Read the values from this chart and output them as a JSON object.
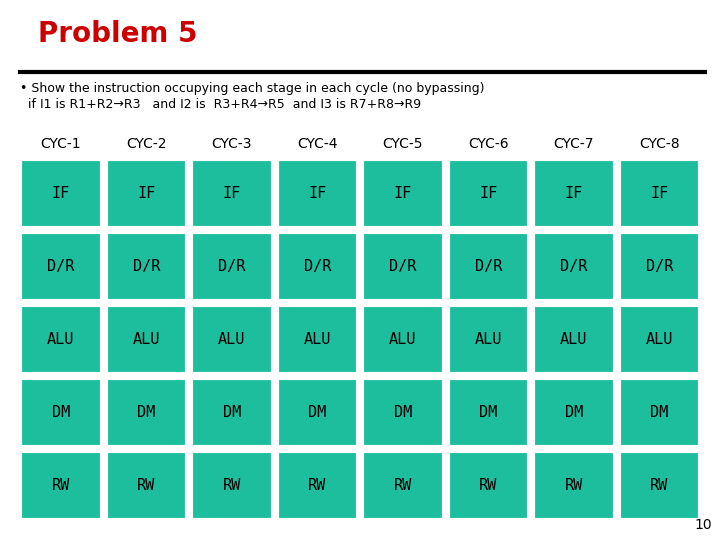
{
  "title": "Problem 5",
  "title_color": "#cc0000",
  "bullet_text_line1": "• Show the instruction occupying each stage in each cycle (no bypassing)",
  "bullet_text_line2": "  if I1 is R1+R2→R3   and I2 is  R3+R4→R5  and I3 is R7+R8→R9",
  "cycle_labels": [
    "CYC-1",
    "CYC-2",
    "CYC-3",
    "CYC-4",
    "CYC-5",
    "CYC-6",
    "CYC-7",
    "CYC-8"
  ],
  "stage_labels": [
    "IF",
    "D/R",
    "ALU",
    "DM",
    "RW"
  ],
  "cell_color": "#1dbe9e",
  "cell_border_color": "#ffffff",
  "cell_text_color": "#000000",
  "background_color": "#ffffff",
  "page_number": "10",
  "num_cols": 8,
  "num_rows": 5,
  "title_fontsize": 20,
  "body_fontsize": 9,
  "cyc_fontsize": 10,
  "cell_fontsize": 11,
  "page_fontsize": 10
}
